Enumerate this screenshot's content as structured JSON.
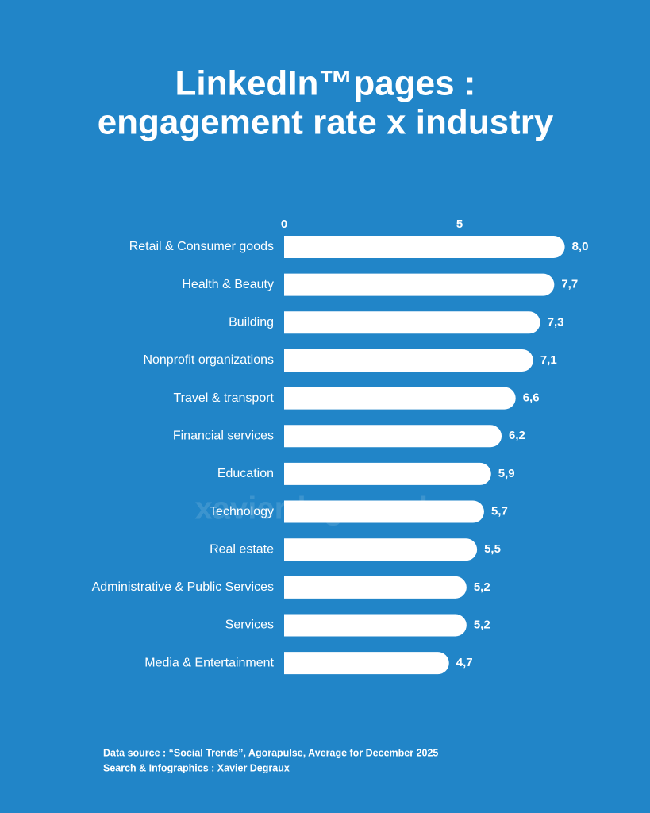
{
  "chart_data": {
    "type": "bar",
    "orientation": "horizontal",
    "title": [
      "LinkedIn™pages :",
      "engagement rate x industry"
    ],
    "categories": [
      "Retail & Consumer goods",
      "Health & Beauty",
      "Building",
      "Nonprofit organizations",
      "Travel & transport",
      "Financial services",
      "Education",
      "Technology",
      "Real estate",
      "Administrative & Public Services",
      "Services",
      "Media & Entertainment"
    ],
    "values": [
      8.0,
      7.7,
      7.3,
      7.1,
      6.6,
      6.2,
      5.9,
      5.7,
      5.5,
      5.2,
      5.2,
      4.7
    ],
    "value_labels": [
      "8,0",
      "7,7",
      "7,3",
      "7,1",
      "6,6",
      "6,2",
      "5,9",
      "5,7",
      "5,5",
      "5,2",
      "5,2",
      "4,7"
    ],
    "color": "#ffffff",
    "xlim": [
      0,
      10
    ],
    "xticks": [
      0,
      5
    ],
    "grid": false,
    "watermark": "xavierdegraux.be",
    "footer": [
      "Data source :  “Social Trends”, Agorapulse, Average for December 2025",
      "Search & Infographics : Xavier Degraux"
    ]
  }
}
